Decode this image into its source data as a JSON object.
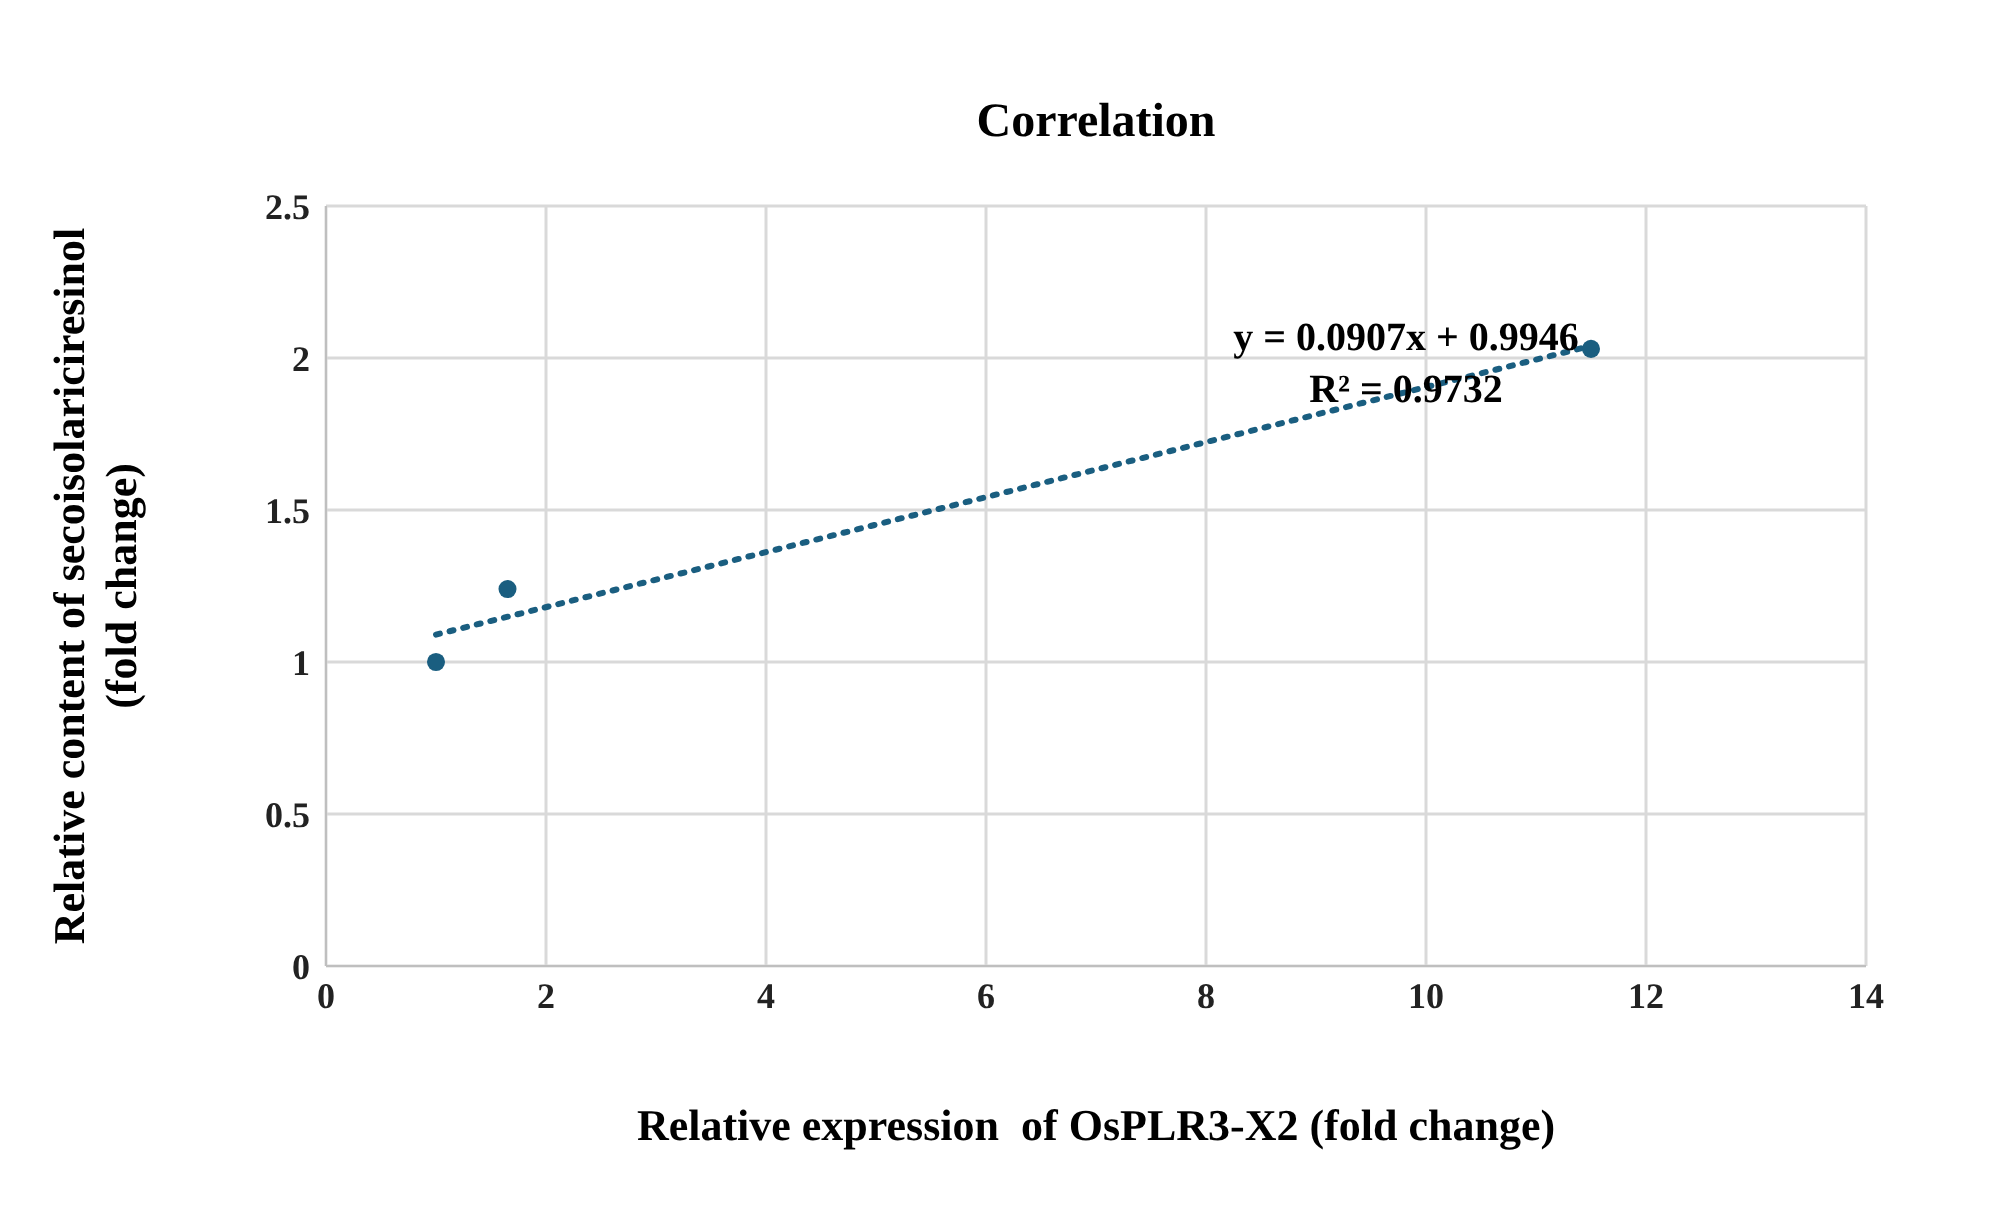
{
  "chart_data": {
    "type": "scatter",
    "title": "Correlation",
    "xlabel": "Relative expression  of OsPLR3-X2 (fold change)",
    "ylabel": "Relative content of secoisolariciresinol\n(fold change)",
    "series": [
      {
        "color": "#1a5e80",
        "x": [
          1,
          1.65,
          11.5
        ],
        "values": [
          1,
          1.24,
          2.03
        ],
        "marker": "circle"
      },
      {
        "type": "line",
        "color": "#1a5e80",
        "x": [
          1,
          11.5
        ],
        "values": [
          1.09,
          2.04
        ],
        "line_style": "dotted",
        "marker": "none"
      }
    ],
    "annotations": [
      "y = 0.0907x + 0.9946",
      "R² = 0.9732"
    ],
    "xlim": [
      0,
      14
    ],
    "xticks": [
      0,
      2,
      4,
      6,
      8,
      10,
      12,
      14
    ],
    "ylim": [
      0,
      2.5
    ],
    "yticks": [
      0,
      0.5,
      1,
      1.5,
      2,
      2.5
    ],
    "grid": true
  }
}
